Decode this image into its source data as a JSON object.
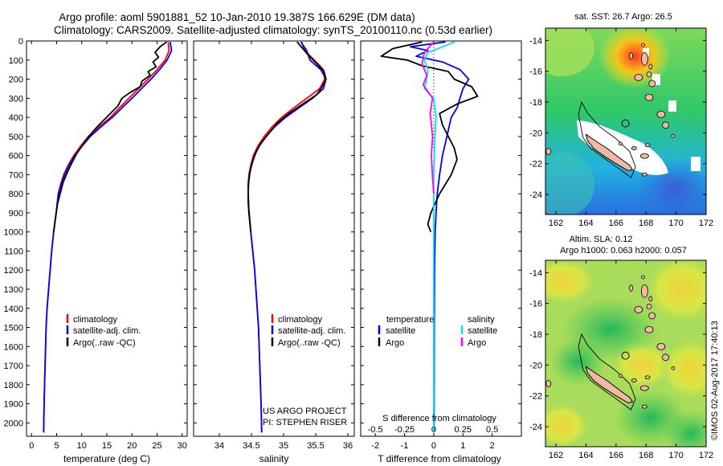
{
  "header": {
    "title_line1": "Argo profile: aoml 5901881_52 10-Jan-2010 19.387S 166.629E (DM data)",
    "title_line2": "Climatology: CARS2009. Satellite-adjusted climatology: synTS_20100110.nc (0.53d earlier)"
  },
  "colors": {
    "climatology": "#ff0000",
    "satellite": "#0000ff",
    "argo": "#000000",
    "sal_satellite": "#00e5e5",
    "sal_argo": "#ff00ff"
  },
  "legend": {
    "climatology": "climatology",
    "satellite_adj": "satellite-adj. clim.",
    "argo": "Argo(..raw -QC)",
    "diff_temperature": "temperature",
    "diff_salinity": "salinity",
    "satellite": "satellite",
    "argo_short": "Argo"
  },
  "credits": {
    "project": "US ARGO PROJECT",
    "pi": "PI: STEPHEN RISER",
    "imos": "©IMOS 02-Aug-2017 17:40:13"
  },
  "chart_data": [
    {
      "type": "line",
      "id": "temperature",
      "xlabel": "temperature (deg C)",
      "ylabel": "",
      "xlim": [
        -1,
        31
      ],
      "ylim": [
        2070,
        0
      ],
      "xticks": [
        0,
        5,
        10,
        15,
        20,
        25,
        30
      ],
      "yticks": [
        0,
        100,
        200,
        300,
        400,
        500,
        600,
        700,
        800,
        900,
        1000,
        1100,
        1200,
        1300,
        1400,
        1500,
        1600,
        1700,
        1800,
        1900,
        2000
      ],
      "series": [
        {
          "name": "climatology",
          "color": "#ff0000",
          "points": [
            [
              27.2,
              5
            ],
            [
              27.4,
              50
            ],
            [
              26.6,
              100
            ],
            [
              25.0,
              150
            ],
            [
              23.2,
              200
            ],
            [
              21.3,
              250
            ],
            [
              19.4,
              300
            ],
            [
              17.5,
              350
            ],
            [
              15.7,
              400
            ],
            [
              13.4,
              450
            ],
            [
              11.3,
              500
            ],
            [
              9.8,
              550
            ],
            [
              8.4,
              600
            ],
            [
              7.3,
              650
            ],
            [
              6.4,
              700
            ],
            [
              5.8,
              750
            ],
            [
              5.3,
              800
            ],
            [
              4.9,
              900
            ],
            [
              4.4,
              1000
            ],
            [
              4.0,
              1100
            ],
            [
              3.7,
              1200
            ],
            [
              3.4,
              1300
            ],
            [
              3.1,
              1400
            ],
            [
              2.9,
              1500
            ],
            [
              2.7,
              1700
            ],
            [
              2.5,
              1900
            ],
            [
              2.4,
              2050
            ]
          ]
        },
        {
          "name": "satellite-adj. clim.",
          "color": "#0000ff",
          "points": [
            [
              27.6,
              5
            ],
            [
              27.9,
              50
            ],
            [
              27.0,
              100
            ],
            [
              25.5,
              150
            ],
            [
              23.8,
              200
            ],
            [
              21.9,
              250
            ],
            [
              20.0,
              300
            ],
            [
              18.0,
              350
            ],
            [
              16.1,
              400
            ],
            [
              13.8,
              450
            ],
            [
              11.7,
              500
            ],
            [
              10.1,
              550
            ],
            [
              8.6,
              600
            ],
            [
              7.5,
              650
            ],
            [
              6.6,
              700
            ],
            [
              5.9,
              750
            ],
            [
              5.4,
              800
            ],
            [
              4.9,
              900
            ],
            [
              4.4,
              1000
            ],
            [
              4.0,
              1100
            ],
            [
              3.7,
              1200
            ],
            [
              3.4,
              1300
            ],
            [
              3.1,
              1400
            ],
            [
              2.9,
              1500
            ],
            [
              2.7,
              1700
            ],
            [
              2.5,
              1900
            ],
            [
              2.4,
              2050
            ]
          ]
        },
        {
          "name": "Argo(..raw -QC)",
          "color": "#000000",
          "points": [
            [
              26.9,
              5
            ],
            [
              25.6,
              30
            ],
            [
              24.6,
              60
            ],
            [
              25.3,
              85
            ],
            [
              24.2,
              110
            ],
            [
              24.8,
              135
            ],
            [
              23.2,
              160
            ],
            [
              23.6,
              180
            ],
            [
              22.0,
              210
            ],
            [
              21.6,
              240
            ],
            [
              19.6,
              270
            ],
            [
              18.0,
              300
            ],
            [
              17.2,
              340
            ],
            [
              15.3,
              390
            ],
            [
              13.4,
              440
            ],
            [
              11.7,
              490
            ],
            [
              10.3,
              540
            ],
            [
              9.0,
              590
            ],
            [
              8.0,
              640
            ],
            [
              7.1,
              690
            ],
            [
              6.3,
              740
            ],
            [
              5.8,
              790
            ],
            [
              5.2,
              850
            ],
            [
              4.8,
              920
            ],
            [
              4.4,
              1000
            ]
          ]
        }
      ]
    },
    {
      "type": "line",
      "id": "salinity",
      "xlabel": "salinity",
      "xlim": [
        33.6,
        36.1
      ],
      "ylim": [
        2070,
        0
      ],
      "xticks": [
        34,
        34.5,
        35,
        35.5,
        36
      ],
      "xtick_labels": [
        "34",
        "34.5",
        "35",
        "35.5",
        "36"
      ],
      "series": [
        {
          "name": "climatology",
          "color": "#ff0000",
          "points": [
            [
              35.28,
              5
            ],
            [
              35.33,
              50
            ],
            [
              35.48,
              100
            ],
            [
              35.62,
              150
            ],
            [
              35.64,
              200
            ],
            [
              35.56,
              250
            ],
            [
              35.36,
              300
            ],
            [
              35.16,
              350
            ],
            [
              34.97,
              400
            ],
            [
              34.82,
              450
            ],
            [
              34.7,
              500
            ],
            [
              34.6,
              550
            ],
            [
              34.53,
              600
            ],
            [
              34.49,
              650
            ],
            [
              34.46,
              700
            ],
            [
              34.45,
              750
            ],
            [
              34.45,
              800
            ],
            [
              34.46,
              900
            ],
            [
              34.49,
              1000
            ],
            [
              34.52,
              1100
            ],
            [
              34.55,
              1200
            ],
            [
              34.57,
              1300
            ],
            [
              34.59,
              1400
            ],
            [
              34.61,
              1500
            ],
            [
              34.63,
              1700
            ],
            [
              34.65,
              1900
            ],
            [
              34.66,
              2050
            ]
          ]
        },
        {
          "name": "satellite-adj. clim.",
          "color": "#0000ff",
          "points": [
            [
              35.27,
              5
            ],
            [
              35.36,
              50
            ],
            [
              35.41,
              100
            ],
            [
              35.58,
              150
            ],
            [
              35.66,
              200
            ],
            [
              35.62,
              250
            ],
            [
              35.45,
              300
            ],
            [
              35.24,
              350
            ],
            [
              35.03,
              400
            ],
            [
              34.86,
              450
            ],
            [
              34.73,
              500
            ],
            [
              34.62,
              550
            ],
            [
              34.55,
              600
            ],
            [
              34.5,
              650
            ],
            [
              34.47,
              700
            ],
            [
              34.45,
              750
            ],
            [
              34.45,
              800
            ],
            [
              34.46,
              900
            ],
            [
              34.49,
              1000
            ],
            [
              34.52,
              1100
            ],
            [
              34.55,
              1200
            ],
            [
              34.57,
              1300
            ],
            [
              34.59,
              1400
            ],
            [
              34.61,
              1500
            ],
            [
              34.63,
              1700
            ],
            [
              34.65,
              1900
            ],
            [
              34.66,
              2050
            ]
          ]
        },
        {
          "name": "Argo(..raw -QC)",
          "color": "#000000",
          "points": [
            [
              35.21,
              5
            ],
            [
              35.3,
              40
            ],
            [
              35.4,
              80
            ],
            [
              35.52,
              120
            ],
            [
              35.63,
              160
            ],
            [
              35.66,
              200
            ],
            [
              35.6,
              240
            ],
            [
              35.52,
              280
            ],
            [
              35.3,
              330
            ],
            [
              35.08,
              380
            ],
            [
              34.9,
              430
            ],
            [
              34.78,
              480
            ],
            [
              34.66,
              530
            ],
            [
              34.57,
              580
            ],
            [
              34.52,
              630
            ],
            [
              34.48,
              680
            ],
            [
              34.46,
              730
            ],
            [
              34.45,
              780
            ],
            [
              34.45,
              850
            ],
            [
              34.47,
              920
            ],
            [
              34.49,
              1000
            ]
          ]
        }
      ]
    },
    {
      "type": "line",
      "id": "difference",
      "xlabel": "T difference from climatology",
      "xlabel_top": "S difference from climatology",
      "xlim_T": [
        -2.5,
        3.0
      ],
      "xlim_S": [
        -0.625,
        0.75
      ],
      "ylim": [
        2070,
        0
      ],
      "xticks_T": [
        -2,
        -1,
        0,
        1,
        2
      ],
      "xtick_labels_T": [
        "-2",
        "-1",
        "0",
        "1",
        "2"
      ],
      "xticks_S": [
        -0.5,
        -0.25,
        0,
        0.25,
        0.5
      ],
      "xtick_labels_S": [
        "-0.5",
        "-0.25",
        "0",
        "0.25",
        "0.5"
      ],
      "series": [
        {
          "name": "temperature satellite",
          "axis": "T",
          "color": "#0000ff",
          "points": [
            [
              0.4,
              5
            ],
            [
              -0.8,
              30
            ],
            [
              -0.2,
              50
            ],
            [
              -0.6,
              80
            ],
            [
              0.3,
              110
            ],
            [
              0.9,
              150
            ],
            [
              1.2,
              200
            ],
            [
              1.0,
              250
            ],
            [
              0.9,
              300
            ],
            [
              0.8,
              350
            ],
            [
              0.6,
              400
            ],
            [
              0.45,
              500
            ],
            [
              0.3,
              600
            ],
            [
              0.2,
              700
            ],
            [
              0.12,
              800
            ],
            [
              0.08,
              900
            ],
            [
              0.05,
              1000
            ],
            [
              0.03,
              1200
            ],
            [
              0.02,
              1500
            ],
            [
              0.01,
              2050
            ]
          ]
        },
        {
          "name": "temperature Argo",
          "axis": "T",
          "color": "#000000",
          "points": [
            [
              -0.4,
              5
            ],
            [
              -1.4,
              40
            ],
            [
              -1.8,
              80
            ],
            [
              -0.9,
              100
            ],
            [
              -0.4,
              130
            ],
            [
              0.5,
              160
            ],
            [
              0.7,
              200
            ],
            [
              1.3,
              240
            ],
            [
              1.5,
              290
            ],
            [
              0.8,
              330
            ],
            [
              0.2,
              380
            ],
            [
              0.3,
              440
            ],
            [
              0.5,
              500
            ],
            [
              0.7,
              560
            ],
            [
              0.8,
              620
            ],
            [
              0.6,
              700
            ],
            [
              0.2,
              800
            ],
            [
              -0.1,
              900
            ],
            [
              -0.2,
              960
            ],
            [
              -0.1,
              1000
            ]
          ]
        },
        {
          "name": "salinity satellite",
          "axis": "S",
          "color": "#00e5e5",
          "points": [
            [
              0.18,
              5
            ],
            [
              0.08,
              30
            ],
            [
              -0.05,
              60
            ],
            [
              -0.08,
              100
            ],
            [
              -0.05,
              150
            ],
            [
              -0.06,
              200
            ],
            [
              -0.08,
              250
            ],
            [
              0.0,
              300
            ],
            [
              0.02,
              400
            ],
            [
              0.01,
              500
            ],
            [
              0.0,
              700
            ],
            [
              0.0,
              1000
            ],
            [
              0.0,
              2050
            ]
          ]
        },
        {
          "name": "salinity Argo",
          "axis": "S",
          "color": "#ff00ff",
          "points": [
            [
              0.0,
              5
            ],
            [
              -0.08,
              60
            ],
            [
              -0.1,
              120
            ],
            [
              -0.06,
              180
            ],
            [
              -0.09,
              230
            ],
            [
              -0.01,
              300
            ],
            [
              -0.03,
              380
            ],
            [
              -0.01,
              500
            ],
            [
              -0.02,
              600
            ],
            [
              -0.01,
              720
            ],
            [
              0.0,
              800
            ]
          ]
        }
      ]
    }
  ],
  "maps": {
    "sst": {
      "title": "sat. SST: 26.7 Argo: 26.5",
      "lon_ticks": [
        162,
        164,
        166,
        168,
        170,
        172
      ],
      "lat_ticks": [
        -14,
        -16,
        -18,
        -20,
        -22,
        -24
      ],
      "lat_labels": [
        "-14",
        "-16",
        "-18",
        "-20",
        "-22",
        "-24"
      ],
      "lon_labels": [
        "162",
        "164",
        "166",
        "168",
        "170",
        "172"
      ],
      "lon_range": [
        161.3,
        172.0
      ],
      "lat_range": [
        -13.2,
        -25.3
      ],
      "argo_position": [
        166.629,
        -19.387
      ]
    },
    "sla": {
      "title": "Altim. SLA: 0.12",
      "subtitle": "Argo h1000: 0.063 h2000: 0.057",
      "lon_ticks": [
        162,
        164,
        166,
        168,
        170,
        172
      ],
      "lat_ticks": [
        -14,
        -16,
        -18,
        -20,
        -22,
        -24
      ],
      "lat_labels": [
        "-14",
        "-16",
        "-18",
        "-20",
        "-22",
        "-24"
      ],
      "lon_labels": [
        "162",
        "164",
        "166",
        "168",
        "170",
        "172"
      ],
      "lon_range": [
        161.3,
        172.0
      ],
      "lat_range": [
        -13.2,
        -25.3
      ],
      "argo_position": [
        166.629,
        -19.387
      ]
    }
  }
}
